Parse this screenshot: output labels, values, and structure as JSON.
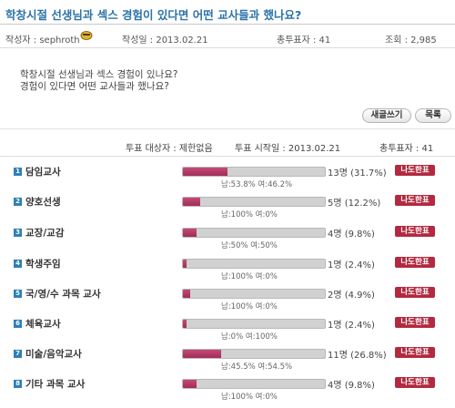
{
  "post": {
    "title": "학창시절 선생님과 섹스 경험이 있다면 어떤 교사들과 했나요?",
    "author_label": "작성자 : sephroth",
    "date_label": "작성일 : 2013.02.21",
    "total_votes_label": "총투표자 : 41",
    "views_label": "조회 : 2,985",
    "body_line1": "학창시절 선생님과 섹스 경험이 있나요?",
    "body_line2": "경험이 있다면 어떤 교사들과 했나요?"
  },
  "buttons": {
    "write": "새글쓰기",
    "list": "목록"
  },
  "poll": {
    "target_label": "투표 대상자 : 제한없음",
    "start_label": "투표 시작일 : 2013.02.21",
    "total_label": "총투표자 : 41",
    "vote_button_label": "나도한표",
    "options": [
      {
        "no": "1",
        "label": "담임교사",
        "fraction": 0.317,
        "count": "13명 (31.7%)",
        "gender": "남:53.8% 여:46.2%"
      },
      {
        "no": "2",
        "label": "양호선생",
        "fraction": 0.122,
        "count": "5명 (12.2%)",
        "gender": "남:100% 여:0%"
      },
      {
        "no": "3",
        "label": "교장/교감",
        "fraction": 0.098,
        "count": "4명 (9.8%)",
        "gender": "남:50% 여:50%"
      },
      {
        "no": "4",
        "label": "학생주임",
        "fraction": 0.024,
        "count": "1명 (2.4%)",
        "gender": "남:100% 여:0%"
      },
      {
        "no": "5",
        "label": "국/영/수 과목 교사",
        "fraction": 0.049,
        "count": "2명 (4.9%)",
        "gender": "남:100% 여:0%"
      },
      {
        "no": "6",
        "label": "체육교사",
        "fraction": 0.024,
        "count": "1명 (2.4%)",
        "gender": "남:0% 여:100%"
      },
      {
        "no": "7",
        "label": "미술/음악교사",
        "fraction": 0.268,
        "count": "11명 (26.8%)",
        "gender": "남:45.5% 여:54.5%"
      },
      {
        "no": "8",
        "label": "기타 과목 교사",
        "fraction": 0.098,
        "count": "4명 (9.8%)",
        "gender": "남:100% 여:0%"
      }
    ]
  },
  "colors": {
    "title": "#2b73a8",
    "bar_fill": "#b3335f",
    "vote_button": "#b3293f",
    "number_badge": "#2e7fb8"
  },
  "icons": {
    "author_avatar": "avatar-icon"
  }
}
